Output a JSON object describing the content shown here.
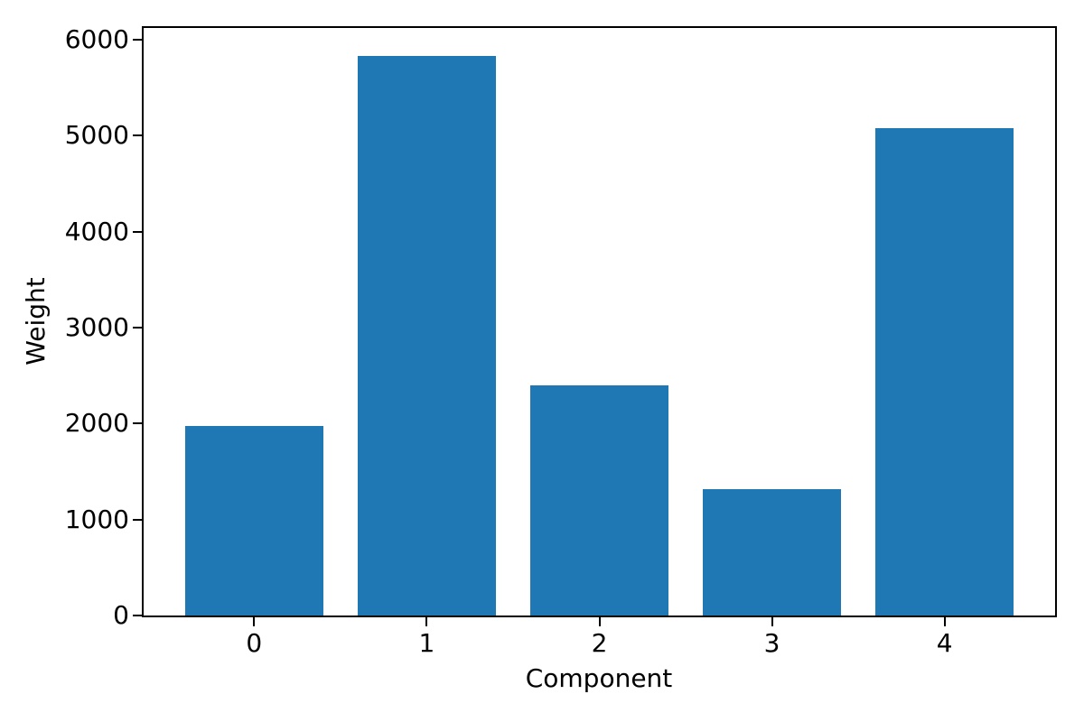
{
  "chart_data": {
    "type": "bar",
    "title": "",
    "xlabel": "Component",
    "ylabel": "Weight",
    "categories": [
      "0",
      "1",
      "2",
      "3",
      "4"
    ],
    "values": [
      1975,
      5830,
      2400,
      1315,
      5075
    ],
    "yticks": [
      0,
      1000,
      2000,
      3000,
      4000,
      5000,
      6000
    ],
    "ytick_labels": [
      "0",
      "1000",
      "2000",
      "3000",
      "4000",
      "5000",
      "6000"
    ],
    "xlim": [
      -0.64,
      4.64
    ],
    "ylim": [
      0,
      6120
    ],
    "bar_width": 0.8,
    "bar_color": "#1f77b4",
    "axis_color": "#000000",
    "text_color": "#000000",
    "background_color": "#ffffff",
    "grid": false,
    "legend_position": "none"
  }
}
